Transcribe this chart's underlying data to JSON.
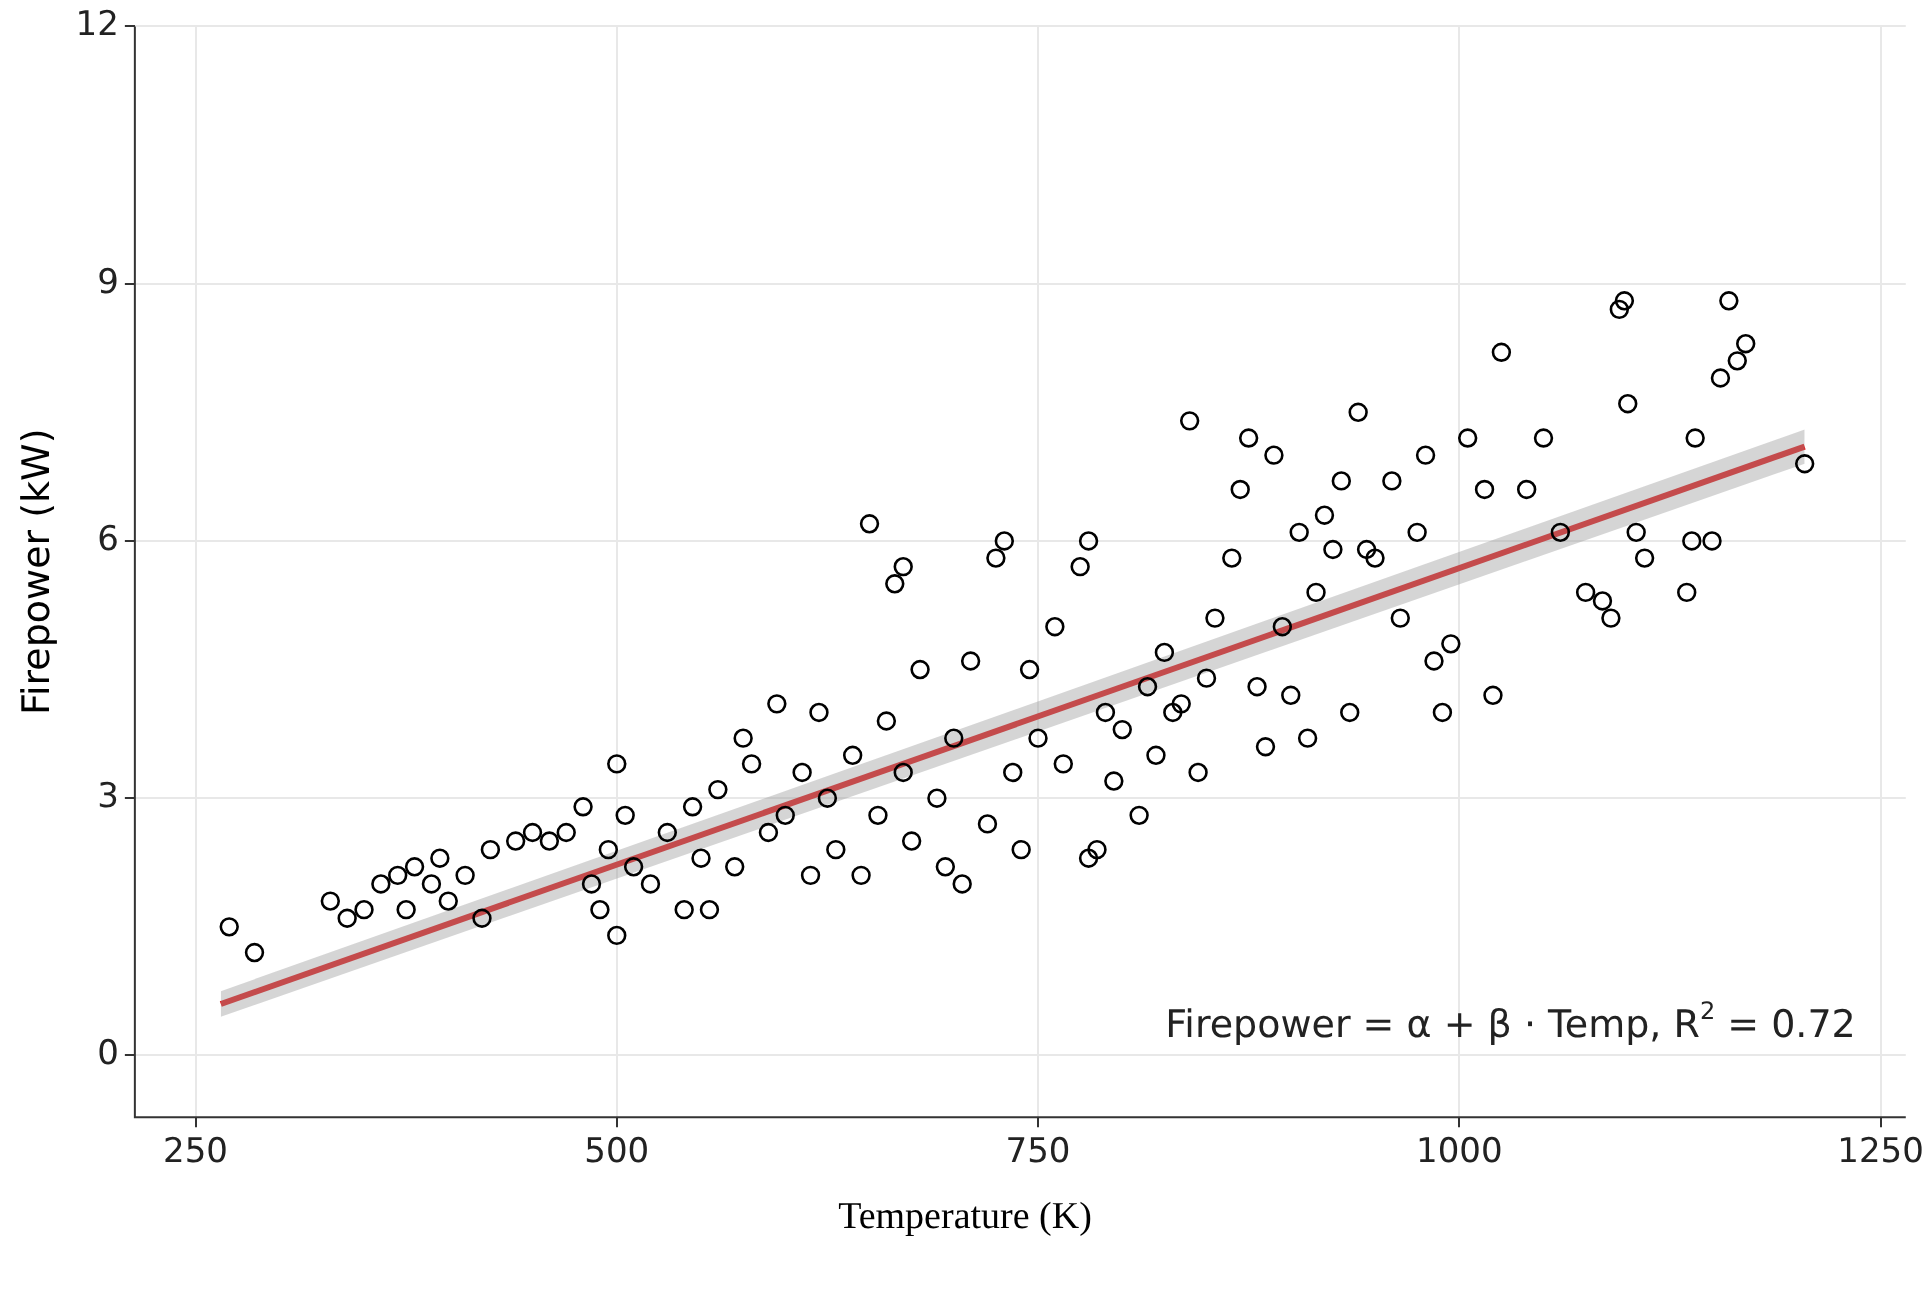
{
  "chart_data": {
    "type": "scatter",
    "xlabel": "Temperature (K)",
    "ylabel": "Firepower (kW)",
    "xlim": [
      214,
      1265
    ],
    "ylim": [
      -0.72,
      12
    ],
    "xticks": [
      250,
      500,
      750,
      1000,
      1250
    ],
    "yticks": [
      0,
      3,
      6,
      9,
      12
    ],
    "grid": true,
    "legend": false,
    "annotations": [
      "Firepower = α + β · Temp, R$^{2}$ = 0.72"
    ],
    "series": [
      {
        "color": "#000000",
        "marker": "circle",
        "x": [
          270,
          285,
          330,
          340,
          350,
          360,
          370,
          375,
          380,
          390,
          395,
          400,
          410,
          420,
          425,
          440,
          450,
          460,
          470,
          480,
          485,
          490,
          495,
          500,
          500,
          505,
          510,
          520,
          530,
          540,
          545,
          550,
          555,
          560,
          570,
          575,
          580,
          590,
          595,
          600,
          610,
          615,
          620,
          625,
          630,
          640,
          645,
          650,
          655,
          660,
          665,
          670,
          670,
          675,
          680,
          690,
          695,
          700,
          705,
          710,
          720,
          725,
          730,
          735,
          740,
          745,
          750,
          760,
          765,
          775,
          780,
          780,
          785,
          790,
          795,
          800,
          810,
          815,
          820,
          825,
          830,
          835,
          840,
          845,
          850,
          855,
          865,
          870,
          875,
          880,
          885,
          890,
          895,
          900,
          905,
          910,
          915,
          920,
          925,
          930,
          935,
          940,
          945,
          950,
          960,
          965,
          975,
          980,
          985,
          990,
          995,
          1005,
          1015,
          1020,
          1025,
          1040,
          1050,
          1060,
          1075,
          1085,
          1090,
          1095,
          1098,
          1100,
          1105,
          1110,
          1135,
          1138,
          1140,
          1150,
          1155,
          1160,
          1165,
          1170,
          1205
        ],
        "values": [
          1.5,
          1.2,
          1.8,
          1.6,
          1.7,
          2.0,
          2.1,
          1.7,
          2.2,
          2.0,
          2.3,
          1.8,
          2.1,
          1.6,
          2.4,
          2.5,
          2.6,
          2.5,
          2.6,
          2.9,
          2.0,
          1.7,
          2.4,
          1.4,
          3.4,
          2.8,
          2.2,
          2.0,
          2.6,
          1.7,
          2.9,
          2.3,
          1.7,
          3.1,
          2.2,
          3.7,
          3.4,
          2.6,
          4.1,
          2.8,
          3.3,
          2.1,
          4.0,
          3.0,
          2.4,
          3.5,
          2.1,
          6.2,
          2.8,
          3.9,
          5.5,
          5.7,
          3.3,
          2.5,
          4.5,
          3.0,
          2.2,
          3.7,
          2.0,
          4.6,
          2.7,
          5.8,
          6.0,
          3.3,
          2.4,
          4.5,
          3.7,
          5.0,
          3.4,
          5.7,
          6.0,
          2.3,
          2.4,
          4.0,
          3.2,
          3.8,
          2.8,
          4.3,
          3.5,
          4.7,
          4.0,
          4.1,
          7.4,
          3.3,
          4.4,
          5.1,
          5.8,
          6.6,
          7.2,
          4.3,
          3.6,
          7.0,
          5.0,
          4.2,
          6.1,
          3.7,
          5.4,
          6.3,
          5.9,
          6.7,
          4.0,
          7.5,
          5.9,
          5.8,
          6.7,
          5.1,
          6.1,
          7.0,
          4.6,
          4.0,
          4.8,
          7.2,
          6.6,
          4.2,
          8.2,
          6.6,
          7.2,
          6.1,
          5.4,
          5.3,
          5.1,
          8.7,
          8.8,
          7.6,
          6.1,
          5.8,
          5.4,
          6.0,
          7.2,
          6.0,
          7.9,
          8.8,
          8.1,
          8.3,
          6.9
        ]
      },
      {
        "type": "line",
        "color": "#e31a1c",
        "marker": "none",
        "x": [
          265,
          1205
        ],
        "values": [
          0.6,
          7.1
        ],
        "lower": [
          0.45,
          6.9
        ],
        "upper": [
          0.75,
          7.3
        ]
      }
    ]
  }
}
